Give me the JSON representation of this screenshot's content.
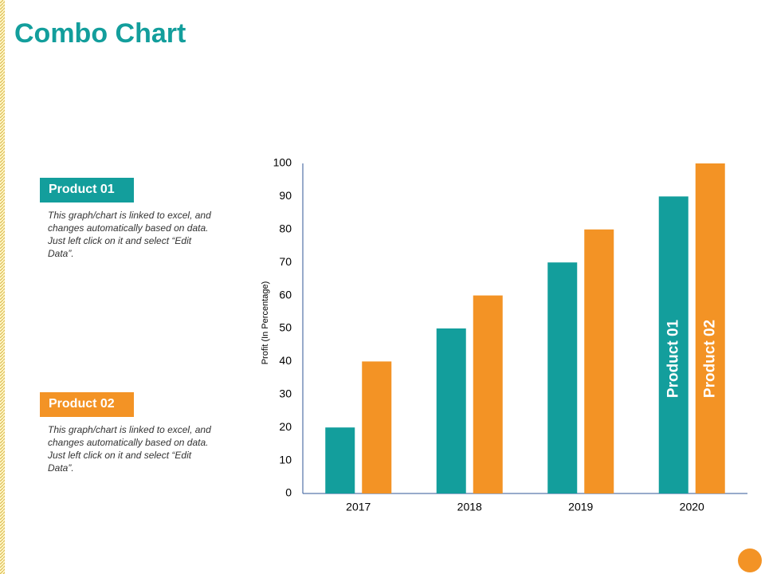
{
  "chart_data": {
    "type": "bar",
    "title": "Combo Chart",
    "y_label": "Profit (In Percentage)",
    "categories": [
      "2017",
      "2018",
      "2019",
      "2020"
    ],
    "series": [
      {
        "name": "Product 01",
        "color": "#139e9c",
        "values": [
          20,
          50,
          70,
          90
        ],
        "description": "This graph/chart is linked to excel, and changes automatically based on data. Just left click on it and select “Edit Data”."
      },
      {
        "name": "Product 02",
        "color": "#f39325",
        "values": [
          40,
          60,
          80,
          100
        ],
        "description": "This graph/chart is linked to excel, and changes automatically based on data. Just left click on it and select “Edit Data”."
      }
    ],
    "ylim": [
      0,
      100
    ],
    "yticks": [
      0,
      10,
      20,
      30,
      40,
      50,
      60,
      70,
      80,
      90,
      100
    ],
    "grid": false
  }
}
